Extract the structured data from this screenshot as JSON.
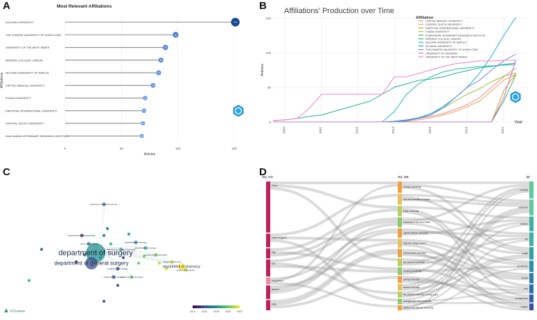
{
  "panels": {
    "a": {
      "letter": "A",
      "title": "Most Relevant Affiliations"
    },
    "b": {
      "letter": "B"
    },
    "c": {
      "letter": "C"
    },
    "d": {
      "letter": "D"
    }
  },
  "chart_data": [
    {
      "id": "A",
      "type": "bar",
      "orientation": "horizontal",
      "style": "lollipop",
      "title": "Most Relevant Affiliations",
      "xlabel": "Articles",
      "ylabel": "Affiliations",
      "xlim": [
        0,
        150
      ],
      "xticks": [
        0,
        50,
        100,
        150
      ],
      "categories": [
        "SICHUAN UNIVERSITY",
        "THE CHINESE UNIVERSITY OF HONG KONG",
        "UNIVERSITY OF THE WEST INDIES",
        "IMPERIAL COLLEGE LONDON",
        "SECOND UNIVERSITY OF NAPLES",
        "CAPITAL MEDICAL UNIVERSITY",
        "FUDAN UNIVERSITY",
        "DARTFOAL INTERNATIONAL UNIVERSITY",
        "CENTRAL SOUTH UNIVERSITY",
        "KUMI ANDAN VETERINARY RESEARCH INSTITUTE"
      ],
      "values": [
        151,
        98,
        89,
        85,
        83,
        78,
        71,
        70,
        69,
        68
      ]
    },
    {
      "id": "B",
      "type": "line",
      "title": "Affiliations' Production over Time",
      "xlabel": "Year",
      "ylabel": "Articles",
      "xlim": [
        2003,
        2024
      ],
      "ylim": [
        0,
        150
      ],
      "xticks": [
        2004,
        2007,
        2010,
        2013,
        2016,
        2019,
        2022
      ],
      "yticks": [
        0,
        50,
        100,
        150
      ],
      "legend_title": "Affiliation",
      "legend_position": "top-right",
      "x": [
        2003,
        2004,
        2005,
        2006,
        2007,
        2008,
        2009,
        2010,
        2011,
        2012,
        2013,
        2014,
        2015,
        2016,
        2017,
        2018,
        2019,
        2020,
        2021,
        2022,
        2023
      ],
      "series": [
        {
          "name": "CAPITAL MEDICAL UNIVERSITY",
          "color": "#f08a8a",
          "values": [
            0,
            0,
            0,
            0,
            0,
            0,
            0,
            0,
            0,
            0,
            0,
            2,
            5,
            8,
            12,
            18,
            25,
            35,
            50,
            65,
            78
          ]
        },
        {
          "name": "CENTRAL SOUTH UNIVERSITY",
          "color": "#e8a050",
          "values": [
            0,
            0,
            0,
            0,
            0,
            0,
            0,
            0,
            0,
            0,
            0,
            1,
            3,
            6,
            10,
            15,
            22,
            30,
            45,
            60,
            69
          ]
        },
        {
          "name": "DARTFOAL INTERNATIONAL UNIVERSITY",
          "color": "#c8a020",
          "values": [
            0,
            0,
            0,
            0,
            0,
            0,
            0,
            0,
            0,
            0,
            0,
            0,
            0,
            0,
            0,
            0,
            0,
            0,
            0,
            45,
            70
          ]
        },
        {
          "name": "FUDAN UNIVERSITY",
          "color": "#8cc63f",
          "values": [
            0,
            0,
            0,
            0,
            0,
            0,
            0,
            0,
            0,
            0,
            0,
            2,
            6,
            12,
            20,
            30,
            40,
            48,
            58,
            66,
            71
          ]
        },
        {
          "name": "KUMI ANDAN VETERINARY RESEARCH INSTITUTE",
          "color": "#4cb050",
          "values": [
            0,
            0,
            0,
            0,
            0,
            0,
            0,
            0,
            0,
            0,
            0,
            0,
            0,
            0,
            0,
            0,
            0,
            0,
            0,
            30,
            68
          ]
        },
        {
          "name": "IMPERIAL COLLEGE LONDON",
          "color": "#20b090",
          "values": [
            2,
            3,
            5,
            8,
            10,
            15,
            20,
            25,
            30,
            40,
            50,
            55,
            60,
            62,
            65,
            70,
            74,
            78,
            80,
            83,
            85
          ]
        },
        {
          "name": "SECOND UNIVERSITY OF NAPLES",
          "color": "#20b8b0",
          "values": [
            0,
            0,
            0,
            0,
            0,
            0,
            0,
            0,
            0,
            0,
            15,
            40,
            55,
            65,
            72,
            76,
            78,
            80,
            81,
            82,
            83
          ]
        },
        {
          "name": "SICHUAN UNIVERSITY",
          "color": "#1ea8d8",
          "values": [
            0,
            0,
            0,
            0,
            0,
            0,
            0,
            0,
            0,
            0,
            1,
            3,
            6,
            12,
            22,
            35,
            50,
            70,
            95,
            125,
            151
          ]
        },
        {
          "name": "THE CHINESE UNIVERSITY OF HONG KONG",
          "color": "#6080e0",
          "values": [
            0,
            0,
            0,
            0,
            0,
            0,
            0,
            0,
            0,
            0,
            0,
            2,
            5,
            10,
            20,
            35,
            50,
            60,
            75,
            88,
            98
          ]
        },
        {
          "name": "UNIVERSITY OF SHUANSH",
          "color": "#c070e0",
          "values": [
            0,
            0,
            0,
            0,
            0,
            0,
            0,
            0,
            0,
            0,
            0,
            0,
            0,
            0,
            0,
            0,
            0,
            0,
            0,
            35,
            90
          ]
        },
        {
          "name": "UNIVERSITY OF THE WEST INDIES",
          "color": "#f080c8",
          "values": [
            2,
            3,
            5,
            20,
            40,
            40,
            40,
            40,
            40,
            40,
            65,
            65,
            70,
            75,
            80,
            84,
            86,
            88,
            88,
            89,
            89
          ]
        }
      ]
    }
  ],
  "network": {
    "nodes": [
      {
        "label": "department of surgery",
        "color": "#21908d",
        "size": "xl"
      },
      {
        "label": "department of general surgery",
        "color": "#3b528b",
        "size": "lg"
      },
      {
        "label": "department of pharmacy",
        "color": "#fde725",
        "size": "md"
      },
      {
        "label": "department of gastroenterology",
        "color": "#35b779",
        "size": "sm"
      },
      {
        "label": "department of clinical science",
        "color": "#31688e",
        "size": "sm"
      },
      {
        "label": "school of pharmacy",
        "color": "#b5de2b",
        "size": "sm"
      },
      {
        "label": "department of psychiatry",
        "color": "#6ece58",
        "size": "sm"
      },
      {
        "label": "department of radiology",
        "color": "#26828e",
        "size": "sm"
      },
      {
        "label": "department of urology",
        "color": "#443983",
        "size": "sm"
      },
      {
        "label": "department of oncology",
        "color": "#1f9e89",
        "size": "sm"
      },
      {
        "label": "department of anesthesiology",
        "color": "#482878",
        "size": "sm"
      },
      {
        "label": "department of nursing",
        "color": "#3e4a89",
        "size": "sm"
      },
      {
        "label": "college of pharmacy",
        "color": "#d8e219",
        "size": "sm"
      },
      {
        "label": "department of neurology",
        "color": "#5ec962",
        "size": "sm"
      },
      {
        "label": "school of medicine",
        "color": "#2c728e",
        "size": "sm"
      }
    ],
    "colorbar": {
      "ticks": [
        "2014",
        "2016",
        "2018",
        "2020",
        "2022"
      ],
      "colors": [
        "#440154",
        "#3b528b",
        "#21908d",
        "#5ec962",
        "#fde725"
      ]
    },
    "logo_text": "VOSviewer"
  },
  "sankey": {
    "headers": [
      "AU_CO",
      "AU_UN",
      "ID"
    ],
    "countries": [
      {
        "name": "china",
        "color": "#c0205a"
      },
      {
        "name": "united kingdom",
        "color": "#c0205a"
      },
      {
        "name": "italy",
        "color": "#c0205a"
      },
      {
        "name": "usa",
        "color": "#c0205a"
      },
      {
        "name": "bangladesh",
        "color": "#e88aa0"
      },
      {
        "name": "jamaica",
        "color": "#c0205a"
      },
      {
        "name": "india",
        "color": "#c0205a"
      }
    ],
    "institutions": [
      {
        "name": "sichuan university",
        "color": "#f0a040"
      },
      {
        "name": "second university of naples",
        "color": "#e8c060"
      },
      {
        "name": "fudan university",
        "color": "#b8d060"
      },
      {
        "name": "university of the west indies",
        "color": "#90c870"
      },
      {
        "name": "capital medical university",
        "color": "#f0a040"
      },
      {
        "name": "imperial college london",
        "color": "#e8c060"
      },
      {
        "name": "central south university",
        "color": "#f0a040"
      },
      {
        "name": "sun yat-sen university",
        "color": "#b8d060"
      },
      {
        "name": "zhejiang university",
        "color": "#90c870"
      },
      {
        "name": "peking university",
        "color": "#f0a040"
      },
      {
        "name": "wuhan university",
        "color": "#e8c060"
      },
      {
        "name": "the chinese university of hong kong",
        "color": "#b8d060"
      },
      {
        "name": "shanghai jiao tong university",
        "color": "#90c870"
      },
      {
        "name": "dartfoal international university",
        "color": "#f0a040"
      }
    ],
    "keywords": [
      {
        "name": "mortality",
        "color": "#60c8a0"
      },
      {
        "name": "outcomes",
        "color": "#60c8a0"
      },
      {
        "name": "children",
        "color": "#40b0a0"
      },
      {
        "name": "risk",
        "color": "#40b0a0"
      },
      {
        "name": "health",
        "color": "#30a0a0"
      },
      {
        "name": "prevalence",
        "color": "#2890a8"
      },
      {
        "name": "impact",
        "color": "#2880a8"
      },
      {
        "name": "care",
        "color": "#2870a8"
      },
      {
        "name": "management",
        "color": "#3060a8"
      },
      {
        "name": "surgery",
        "color": "#3050a0"
      }
    ]
  }
}
